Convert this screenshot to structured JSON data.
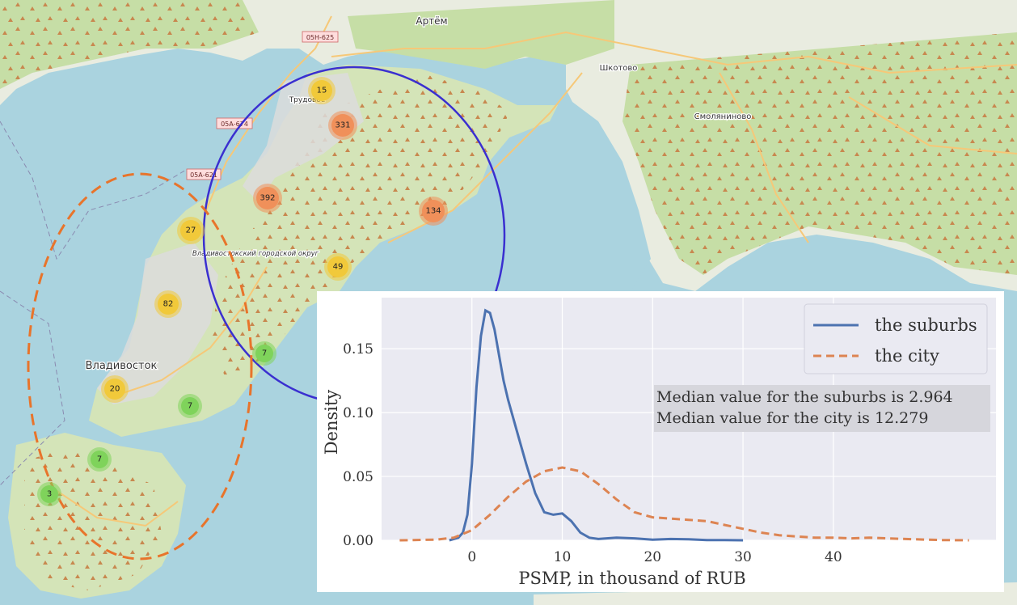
{
  "map": {
    "places": [
      {
        "name": "Артём",
        "size": 12
      },
      {
        "name": "Шкотово",
        "size": 10
      },
      {
        "name": "Смоляниново",
        "size": 10
      },
      {
        "name": "Трудовое",
        "size": 9
      },
      {
        "name": "Владивосток",
        "size": 13
      },
      {
        "name": "Владивостокский городской округ",
        "size": 9
      }
    ],
    "road_labels": [
      "05Н-625",
      "05А-674",
      "05А-621"
    ],
    "clusters": [
      {
        "count": "15",
        "level": "medium"
      },
      {
        "count": "331",
        "level": "large"
      },
      {
        "count": "392",
        "level": "large"
      },
      {
        "count": "134",
        "level": "large"
      },
      {
        "count": "27",
        "level": "medium"
      },
      {
        "count": "49",
        "level": "medium"
      },
      {
        "count": "82",
        "level": "medium"
      },
      {
        "count": "7",
        "level": "small"
      },
      {
        "count": "20",
        "level": "medium"
      },
      {
        "count": "7",
        "level": "small"
      },
      {
        "count": "7",
        "level": "small"
      },
      {
        "count": "3",
        "level": "small"
      }
    ],
    "cluster_colors": {
      "small": "#7fd35b",
      "medium": "#f1c93a",
      "large": "#f0905a"
    },
    "circle_colors": {
      "suburbs": "#3a2fd0",
      "city": "#e8742b"
    }
  },
  "chart_data": {
    "type": "line",
    "xlabel": "PSMP, in thousand of RUB",
    "ylabel": "Density",
    "xlim": [
      -10,
      58
    ],
    "ylim": [
      0,
      0.19
    ],
    "xticks": [
      0,
      10,
      20,
      30,
      40
    ],
    "yticks": [
      0.0,
      0.05,
      0.1,
      0.15
    ],
    "ytick_labels": [
      "0.00",
      "0.05",
      "0.10",
      "0.15"
    ],
    "legend_position": "top-right",
    "series": [
      {
        "name": "the suburbs",
        "style": "solid",
        "color": "#4c72b0",
        "x": [
          -2.5,
          -1.5,
          -1,
          -0.5,
          0,
          0.5,
          1,
          1.5,
          2,
          2.5,
          3,
          3.5,
          4,
          5,
          6,
          7,
          8,
          9,
          10,
          11,
          12,
          13,
          14,
          16,
          18,
          20,
          22,
          24,
          26,
          28,
          30
        ],
        "y": [
          0.0,
          0.002,
          0.006,
          0.02,
          0.06,
          0.12,
          0.16,
          0.18,
          0.178,
          0.165,
          0.145,
          0.125,
          0.11,
          0.085,
          0.06,
          0.037,
          0.022,
          0.02,
          0.021,
          0.015,
          0.006,
          0.002,
          0.001,
          0.002,
          0.0015,
          0.0005,
          0.001,
          0.0008,
          0.0002,
          0.0002,
          0.0
        ]
      },
      {
        "name": "the city",
        "style": "dashed",
        "color": "#dd8452",
        "x": [
          -8,
          -4,
          -2,
          0,
          2,
          4,
          6,
          8,
          10,
          12,
          14,
          16,
          18,
          20,
          22,
          24,
          26,
          28,
          30,
          32,
          34,
          36,
          38,
          40,
          42,
          44,
          46,
          48,
          50,
          52,
          55
        ],
        "y": [
          0.0,
          0.0005,
          0.002,
          0.008,
          0.02,
          0.034,
          0.046,
          0.054,
          0.057,
          0.054,
          0.044,
          0.032,
          0.022,
          0.018,
          0.017,
          0.016,
          0.015,
          0.012,
          0.009,
          0.006,
          0.004,
          0.003,
          0.002,
          0.002,
          0.0015,
          0.002,
          0.0015,
          0.001,
          0.0006,
          0.0002,
          0.0
        ]
      }
    ],
    "annotations": [
      "Median value for the suburbs is 2.964",
      "Median value for the city is 12.279"
    ]
  }
}
